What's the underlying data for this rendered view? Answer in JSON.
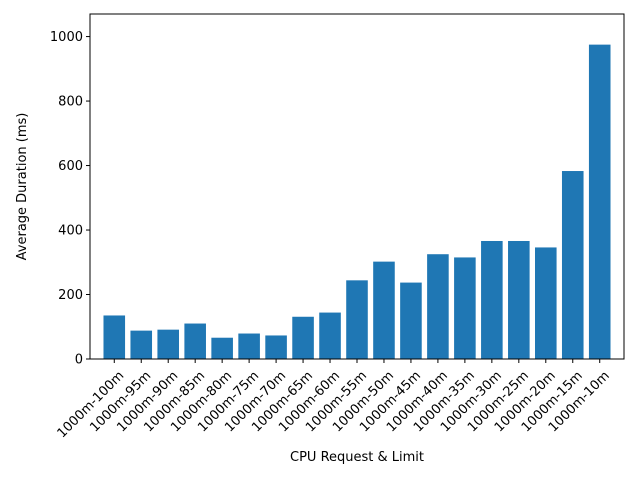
{
  "colors": {
    "bar": "#1f77b4",
    "axis": "#000000",
    "background": "#ffffff"
  },
  "chart_data": {
    "type": "bar",
    "title": "",
    "xlabel": "CPU Request & Limit",
    "ylabel": "Average Duration (ms)",
    "categories": [
      "1000m-100m",
      "1000m-95m",
      "1000m-90m",
      "1000m-85m",
      "1000m-80m",
      "1000m-75m",
      "1000m-70m",
      "1000m-65m",
      "1000m-60m",
      "1000m-55m",
      "1000m-50m",
      "1000m-45m",
      "1000m-40m",
      "1000m-35m",
      "1000m-30m",
      "1000m-25m",
      "1000m-20m",
      "1000m-15m",
      "1000m-10m"
    ],
    "values": [
      135,
      88,
      91,
      110,
      66,
      79,
      73,
      131,
      144,
      244,
      302,
      237,
      325,
      315,
      366,
      366,
      346,
      583,
      975
    ],
    "ylim": [
      0,
      1070
    ],
    "yticks": [
      0,
      200,
      400,
      600,
      800,
      1000
    ],
    "grid": false,
    "legend": "none"
  }
}
